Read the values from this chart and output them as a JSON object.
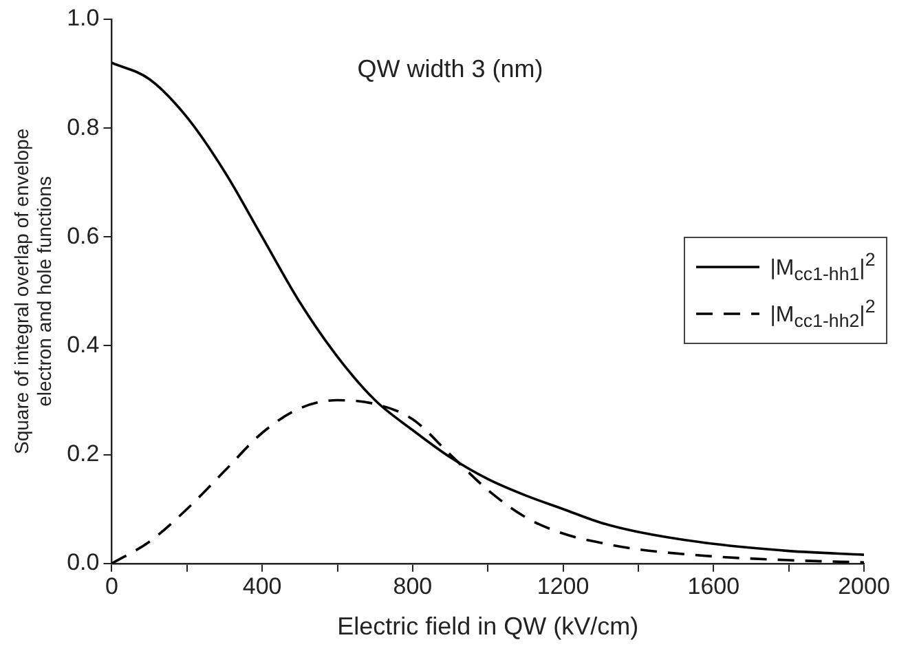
{
  "chart_data": {
    "type": "line",
    "xlabel": "Electric field in QW (kV/cm)",
    "ylabel": "Square of integral overlap of envelope electron and hole functions",
    "annotations": [
      "QW width 3 (nm)"
    ],
    "xlim": [
      0,
      2000
    ],
    "ylim": [
      0,
      1
    ],
    "xticks": [
      0,
      {
        "value": 200,
        "label": null
      },
      400,
      {
        "value": 600,
        "label": null
      },
      800,
      {
        "value": 1000,
        "label": null
      },
      1200,
      {
        "value": 1400,
        "label": null
      },
      1600,
      {
        "value": 1800,
        "label": null
      },
      2000
    ],
    "yticks": [
      {
        "value": 0,
        "label": "0.0"
      },
      {
        "value": 0.2,
        "label": "0.2"
      },
      {
        "value": 0.4,
        "label": "0.4"
      },
      {
        "value": 0.6,
        "label": "0.6"
      },
      {
        "value": 0.8,
        "label": "0.8"
      },
      {
        "value": 1,
        "label": "1.0"
      }
    ],
    "grid": false,
    "legend": "right",
    "marker": "none",
    "series": [
      {
        "name": "|M$_{cc1-hh1}$|$^{2}$",
        "color": "#000000",
        "line_style": "solid",
        "x": [
          0,
          100,
          200,
          300,
          400,
          500,
          600,
          700,
          800,
          900,
          1000,
          1100,
          1200,
          1300,
          1400,
          1600,
          1800,
          2000
        ],
        "values": [
          0.92,
          0.89,
          0.82,
          0.72,
          0.6,
          0.48,
          0.38,
          0.3,
          0.245,
          0.195,
          0.155,
          0.125,
          0.1,
          0.075,
          0.058,
          0.036,
          0.023,
          0.016
        ]
      },
      {
        "name": "|M$_{cc1-hh2}$|$^{2}$",
        "color": "#000000",
        "line_style": "dashed",
        "x": [
          0,
          100,
          200,
          300,
          400,
          500,
          600,
          700,
          800,
          900,
          1000,
          1100,
          1200,
          1300,
          1400,
          1600,
          1800,
          2000
        ],
        "values": [
          0,
          0.04,
          0.1,
          0.17,
          0.24,
          0.285,
          0.3,
          0.293,
          0.265,
          0.2,
          0.135,
          0.085,
          0.055,
          0.038,
          0.026,
          0.013,
          0.006,
          0.002
        ]
      }
    ]
  }
}
